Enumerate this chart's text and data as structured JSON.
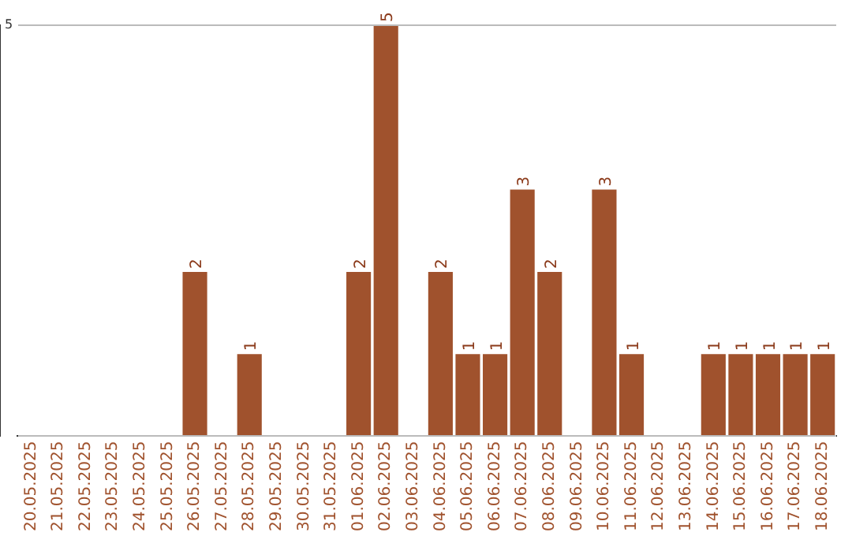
{
  "chart_data": {
    "type": "bar",
    "categories": [
      "20.05.2025",
      "21.05.2025",
      "22.05.2025",
      "23.05.2025",
      "24.05.2025",
      "25.05.2025",
      "26.05.2025",
      "27.05.2025",
      "28.05.2025",
      "29.05.2025",
      "30.05.2025",
      "31.05.2025",
      "01.06.2025",
      "02.06.2025",
      "03.06.2025",
      "04.06.2025",
      "05.06.2025",
      "06.06.2025",
      "07.06.2025",
      "08.06.2025",
      "09.06.2025",
      "10.06.2025",
      "11.06.2025",
      "12.06.2025",
      "13.06.2025",
      "14.06.2025",
      "15.06.2025",
      "16.06.2025",
      "17.06.2025",
      "18.06.2025"
    ],
    "values": [
      0,
      0,
      0,
      0,
      0,
      0,
      2,
      0,
      1,
      0,
      0,
      0,
      2,
      5,
      0,
      2,
      1,
      1,
      3,
      2,
      0,
      3,
      1,
      0,
      0,
      1,
      1,
      1,
      1,
      1
    ],
    "value_labels": [
      null,
      null,
      null,
      null,
      null,
      null,
      "2",
      null,
      "1",
      null,
      null,
      null,
      "2",
      "5",
      null,
      "2",
      "1",
      "1",
      "3",
      "2",
      null,
      "3",
      "1",
      null,
      null,
      "1",
      "1",
      "1",
      "1",
      "1"
    ],
    "color": "#a0522d",
    "ylim": [
      0,
      5
    ],
    "yticks": [
      {
        "value": 0,
        "label": null
      },
      5
    ],
    "grid": "y",
    "legend": false
  }
}
